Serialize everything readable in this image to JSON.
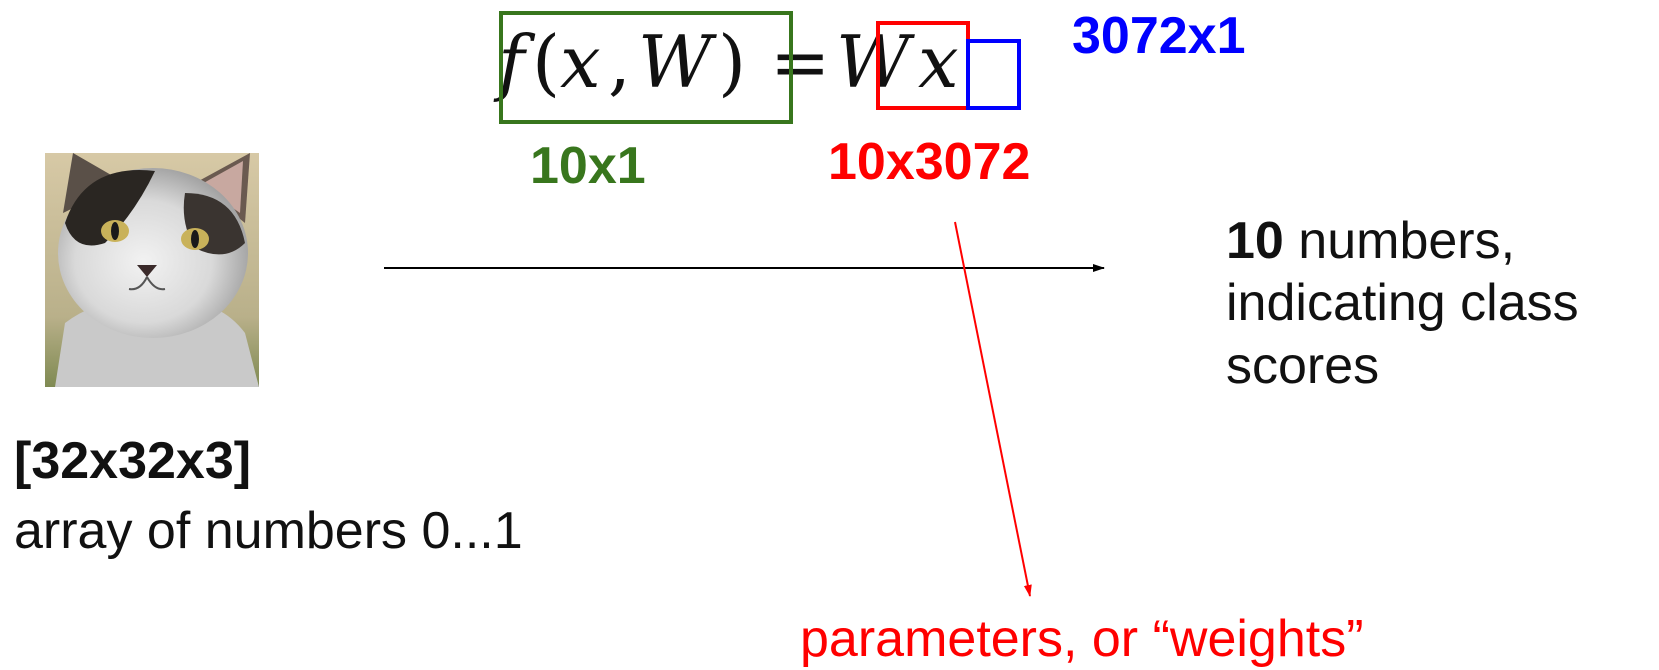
{
  "equation": {
    "f": "f",
    "open_paren": "(",
    "x1": "x",
    "comma": ",",
    "W1": "W",
    "close_paren": ")",
    "equals": "=",
    "W2": "W",
    "x2": "x"
  },
  "dimensions": {
    "output": "10x1",
    "weights": "10x3072",
    "input_vector": "3072x1"
  },
  "input_image": {
    "icon": "cat-photo-icon",
    "shape_label": "[32x32x3]",
    "description": "array of numbers 0...1"
  },
  "output_text": {
    "count": "10",
    "line1_rest": " numbers,",
    "line2": "indicating class",
    "line3": "scores"
  },
  "annotation": {
    "label": "parameters, or “weights”"
  },
  "colors": {
    "output_box": "#38761d",
    "weights_box": "#ff0000",
    "input_box": "#0000ff",
    "text": "#111111"
  }
}
